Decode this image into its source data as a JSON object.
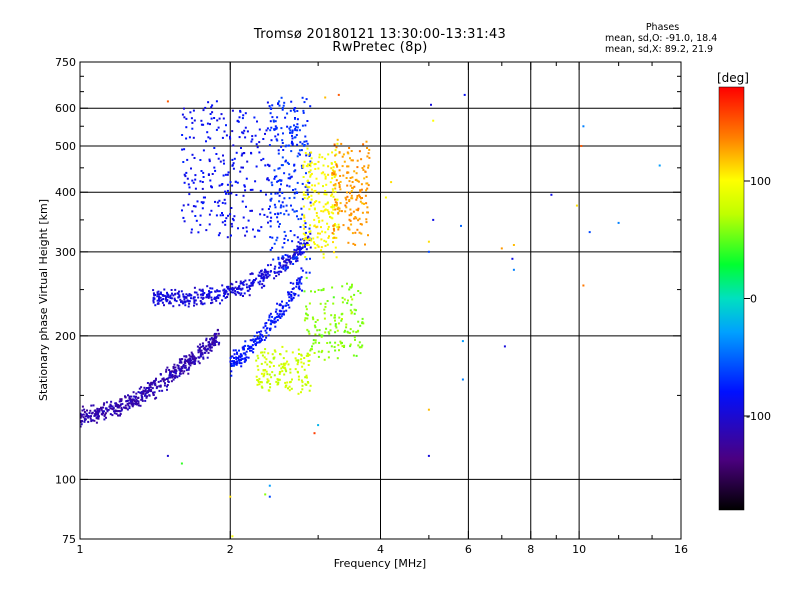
{
  "chart_data": {
    "type": "scatter",
    "title": "Tromsø 20180121 13:30:00-13:31:43",
    "subtitle": "RwPretec (8p)",
    "xlabel": "Frequency [MHz]",
    "ylabel": "Stationary phase Virtual Height [km]",
    "x_scale": "log",
    "y_scale": "log",
    "xlim": [
      1,
      16
    ],
    "ylim": [
      75,
      750
    ],
    "x_ticks": [
      1,
      2,
      4,
      6,
      8,
      10,
      16
    ],
    "x_minor_ticks": [
      3,
      5,
      7,
      9,
      12,
      14
    ],
    "y_ticks": [
      75,
      100,
      200,
      300,
      400,
      500,
      600,
      750
    ],
    "y_minor_ticks": [
      150,
      250,
      350,
      450,
      550,
      650,
      700
    ],
    "x_grid": [
      2,
      4,
      6,
      8,
      10
    ],
    "y_grid": [
      100,
      200,
      300,
      400,
      500,
      600
    ],
    "grid": true,
    "colorbar": {
      "label": "[deg]",
      "range": [
        -180,
        180
      ],
      "ticks": [
        -100,
        0,
        100
      ],
      "colors": [
        "#000000",
        "#3a0080",
        "#1a1aff",
        "#00a0ff",
        "#00e0e0",
        "#00ff40",
        "#a0ff00",
        "#ffff00",
        "#ff8000",
        "#ff0000"
      ]
    },
    "stats": {
      "header": "Phases",
      "line_o": "mean, sd,O:  -91.0,  18.4",
      "line_x": "mean, sd,X:   89.2,  21.9"
    },
    "series": [
      {
        "kind": "dense",
        "name": "",
        "phase": -115,
        "x": [
          1.0,
          1.9
        ],
        "y": [
          135,
          200
        ],
        "spread": 0.55,
        "n": 520,
        "curve": "lowerE"
      },
      {
        "kind": "dense",
        "phase": -95,
        "x": [
          1.4,
          2.9
        ],
        "y": [
          240,
          320
        ],
        "spread": 0.5,
        "n": 420,
        "curve": "Fmain"
      },
      {
        "kind": "dense",
        "phase": -85,
        "x": [
          1.6,
          2.4
        ],
        "y": [
          330,
          600
        ],
        "spread": 0.7,
        "n": 260,
        "curve": "Fhigh"
      },
      {
        "kind": "dense",
        "phase": -70,
        "x": [
          2.4,
          2.9
        ],
        "y": [
          270,
          630
        ],
        "spread": 0.6,
        "n": 260,
        "curve": "Fhook"
      },
      {
        "kind": "dense",
        "phase": -80,
        "x": [
          2.0,
          2.8
        ],
        "y": [
          175,
          265
        ],
        "spread": 0.6,
        "n": 220,
        "curve": "lowerF"
      },
      {
        "kind": "dense",
        "phase": 100,
        "x": [
          2.8,
          3.3
        ],
        "y": [
          300,
          480
        ],
        "spread": 0.6,
        "n": 200,
        "curve": "Xmid"
      },
      {
        "kind": "dense",
        "phase": 130,
        "x": [
          3.2,
          3.8
        ],
        "y": [
          320,
          500
        ],
        "spread": 0.6,
        "n": 180,
        "curve": "Xhigh"
      },
      {
        "kind": "dense",
        "phase": 80,
        "x": [
          2.25,
          2.9
        ],
        "y": [
          155,
          185
        ],
        "spread": 0.6,
        "n": 150,
        "curve": "Xlow"
      },
      {
        "kind": "dense",
        "phase": 60,
        "x": [
          2.8,
          3.7
        ],
        "y": [
          185,
          255
        ],
        "spread": 0.6,
        "n": 150,
        "curve": "Xlow2"
      }
    ],
    "sparse_points": [
      {
        "x": 5.05,
        "y": 610,
        "phase": -95
      },
      {
        "x": 5.9,
        "y": 640,
        "phase": -85
      },
      {
        "x": 5.1,
        "y": 565,
        "phase": 100
      },
      {
        "x": 5.1,
        "y": 350,
        "phase": -90
      },
      {
        "x": 5.0,
        "y": 300,
        "phase": -60
      },
      {
        "x": 5.0,
        "y": 315,
        "phase": 110
      },
      {
        "x": 5.8,
        "y": 340,
        "phase": -50
      },
      {
        "x": 5.85,
        "y": 195,
        "phase": -30
      },
      {
        "x": 5.85,
        "y": 162,
        "phase": -40
      },
      {
        "x": 5.0,
        "y": 140,
        "phase": 120
      },
      {
        "x": 5.0,
        "y": 112,
        "phase": -95
      },
      {
        "x": 4.2,
        "y": 420,
        "phase": 110
      },
      {
        "x": 4.1,
        "y": 390,
        "phase": 100
      },
      {
        "x": 7.0,
        "y": 305,
        "phase": 130
      },
      {
        "x": 7.4,
        "y": 310,
        "phase": 120
      },
      {
        "x": 7.35,
        "y": 290,
        "phase": -90
      },
      {
        "x": 7.4,
        "y": 275,
        "phase": -40
      },
      {
        "x": 7.1,
        "y": 190,
        "phase": -95
      },
      {
        "x": 8.8,
        "y": 395,
        "phase": -90
      },
      {
        "x": 9.9,
        "y": 375,
        "phase": 110
      },
      {
        "x": 10.2,
        "y": 550,
        "phase": -40
      },
      {
        "x": 10.5,
        "y": 330,
        "phase": -60
      },
      {
        "x": 10.2,
        "y": 255,
        "phase": 140
      },
      {
        "x": 12.0,
        "y": 345,
        "phase": -40
      },
      {
        "x": 14.5,
        "y": 455,
        "phase": -30
      },
      {
        "x": 10.1,
        "y": 500,
        "phase": 150
      },
      {
        "x": 1.5,
        "y": 620,
        "phase": 150
      },
      {
        "x": 3.1,
        "y": 632,
        "phase": 120
      },
      {
        "x": 3.3,
        "y": 640,
        "phase": 150
      },
      {
        "x": 2.95,
        "y": 125,
        "phase": 160
      },
      {
        "x": 2.0,
        "y": 92,
        "phase": 110
      },
      {
        "x": 2.35,
        "y": 93,
        "phase": 60
      },
      {
        "x": 2.4,
        "y": 92,
        "phase": -60
      },
      {
        "x": 2.4,
        "y": 97,
        "phase": -30
      },
      {
        "x": 1.6,
        "y": 108,
        "phase": 40
      },
      {
        "x": 1.5,
        "y": 112,
        "phase": -100
      },
      {
        "x": 2.02,
        "y": 76,
        "phase": 100
      },
      {
        "x": 3.0,
        "y": 130,
        "phase": -20
      }
    ]
  }
}
